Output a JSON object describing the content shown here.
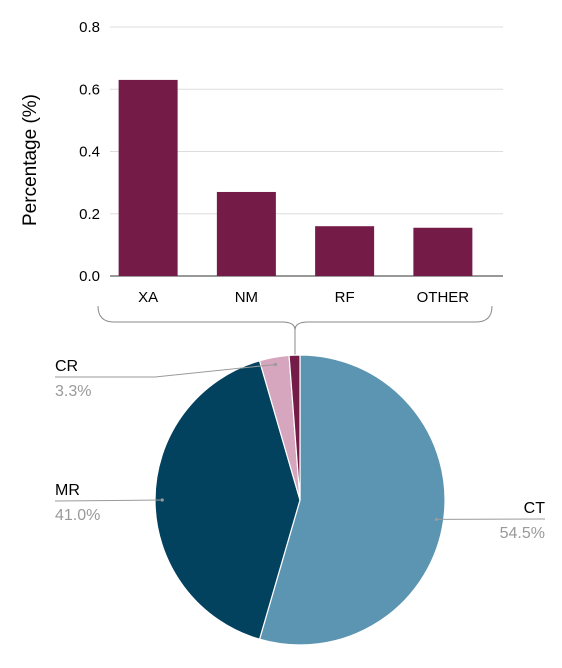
{
  "chart_data": [
    {
      "type": "bar",
      "categories": [
        "XA",
        "NM",
        "RF",
        "OTHER"
      ],
      "values": [
        0.63,
        0.27,
        0.16,
        0.155
      ],
      "ylabel": "Percentage (%)",
      "xlabel": "",
      "ylim": [
        0,
        0.8
      ],
      "yticks": [
        "0.0",
        "0.2",
        "0.4",
        "0.6",
        "0.8"
      ],
      "grid": true,
      "color": "#741b47"
    },
    {
      "type": "pie",
      "slices": [
        {
          "label": "CT",
          "value": 54.5,
          "pct_label": "54.5%",
          "color": "#5b95b2"
        },
        {
          "label": "MR",
          "value": 41.0,
          "pct_label": "41.0%",
          "color": "#03425e"
        },
        {
          "label": "CR",
          "value": 3.3,
          "pct_label": "3.3%",
          "color": "#d5a6bd"
        },
        {
          "label": "",
          "value": 1.2,
          "pct_label": "",
          "color": "#741b47"
        }
      ]
    }
  ]
}
